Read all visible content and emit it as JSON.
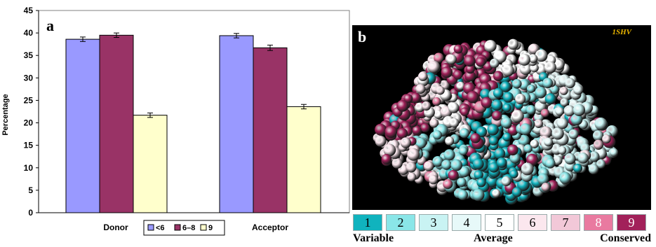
{
  "panel_a": {
    "letter": "a",
    "ylabel": "Percentage",
    "chart_data": {
      "type": "bar",
      "categories": [
        "Donor",
        "Acceptor"
      ],
      "series": [
        {
          "name": "<6",
          "values": [
            38.6,
            39.4
          ],
          "errors": [
            0.5,
            0.5
          ],
          "color": "#9999ff"
        },
        {
          "name": "6–8",
          "values": [
            39.5,
            36.7
          ],
          "errors": [
            0.5,
            0.6
          ],
          "color": "#993366"
        },
        {
          "name": "9",
          "values": [
            21.7,
            23.6
          ],
          "errors": [
            0.5,
            0.5
          ],
          "color": "#ffffcc"
        }
      ],
      "ylim": [
        0,
        45
      ],
      "yticks": [
        "0",
        "5",
        "10",
        "15",
        "20",
        "25",
        "30",
        "35",
        "40",
        "45"
      ],
      "grid": false,
      "legend": "bottom"
    }
  },
  "panel_b": {
    "letter": "b",
    "pdb_id": "1SHV",
    "scale": {
      "cells": [
        {
          "label": "1",
          "color": "#10b3be",
          "text_color": "#000000"
        },
        {
          "label": "2",
          "color": "#8ae6e8",
          "text_color": "#000000"
        },
        {
          "label": "3",
          "color": "#c9f3f3",
          "text_color": "#000000"
        },
        {
          "label": "4",
          "color": "#e7f9f9",
          "text_color": "#000000"
        },
        {
          "label": "5",
          "color": "#ffffff",
          "text_color": "#000000"
        },
        {
          "label": "6",
          "color": "#fbe7ee",
          "text_color": "#000000"
        },
        {
          "label": "7",
          "color": "#f2c8d8",
          "text_color": "#000000"
        },
        {
          "label": "8",
          "color": "#e97aa0",
          "text_color": "#ffffff"
        },
        {
          "label": "9",
          "color": "#a2215a",
          "text_color": "#ffffff"
        }
      ],
      "labels": {
        "left": "Variable",
        "middle": "Average",
        "right": "Conserved"
      }
    }
  }
}
